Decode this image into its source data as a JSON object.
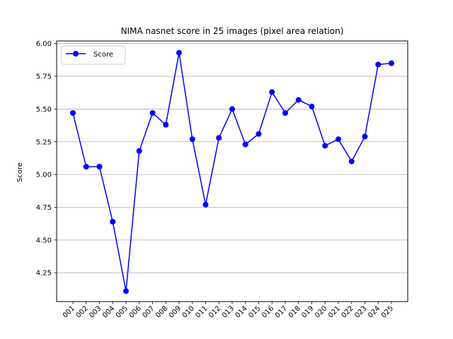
{
  "chart_data": {
    "type": "line",
    "title": "NIMA nasnet score in 25 images (pixel area relation)",
    "xlabel": "",
    "ylabel": "Score",
    "categories": [
      "001",
      "002",
      "003",
      "004",
      "005",
      "006",
      "007",
      "008",
      "009",
      "010",
      "011",
      "012",
      "013",
      "014",
      "015",
      "016",
      "017",
      "018",
      "019",
      "020",
      "021",
      "022",
      "023",
      "024",
      "025"
    ],
    "series": [
      {
        "name": "Score",
        "color": "#0000ff",
        "marker": "circle",
        "values": [
          5.47,
          5.06,
          5.06,
          4.64,
          4.11,
          5.18,
          5.47,
          5.38,
          5.93,
          5.27,
          4.77,
          5.28,
          5.5,
          5.23,
          5.31,
          5.63,
          5.47,
          5.57,
          5.52,
          5.22,
          5.27,
          5.1,
          5.29,
          5.84,
          5.85
        ]
      }
    ],
    "ylim": [
      4.03,
      6.02
    ],
    "yticks": [
      4.25,
      4.5,
      4.75,
      5.0,
      5.25,
      5.5,
      5.75,
      6.0
    ],
    "ytick_labels": [
      "4.25",
      "4.50",
      "4.75",
      "5.00",
      "5.25",
      "5.50",
      "5.75",
      "6.00"
    ],
    "grid": "horizontal",
    "legend": "top-left"
  }
}
